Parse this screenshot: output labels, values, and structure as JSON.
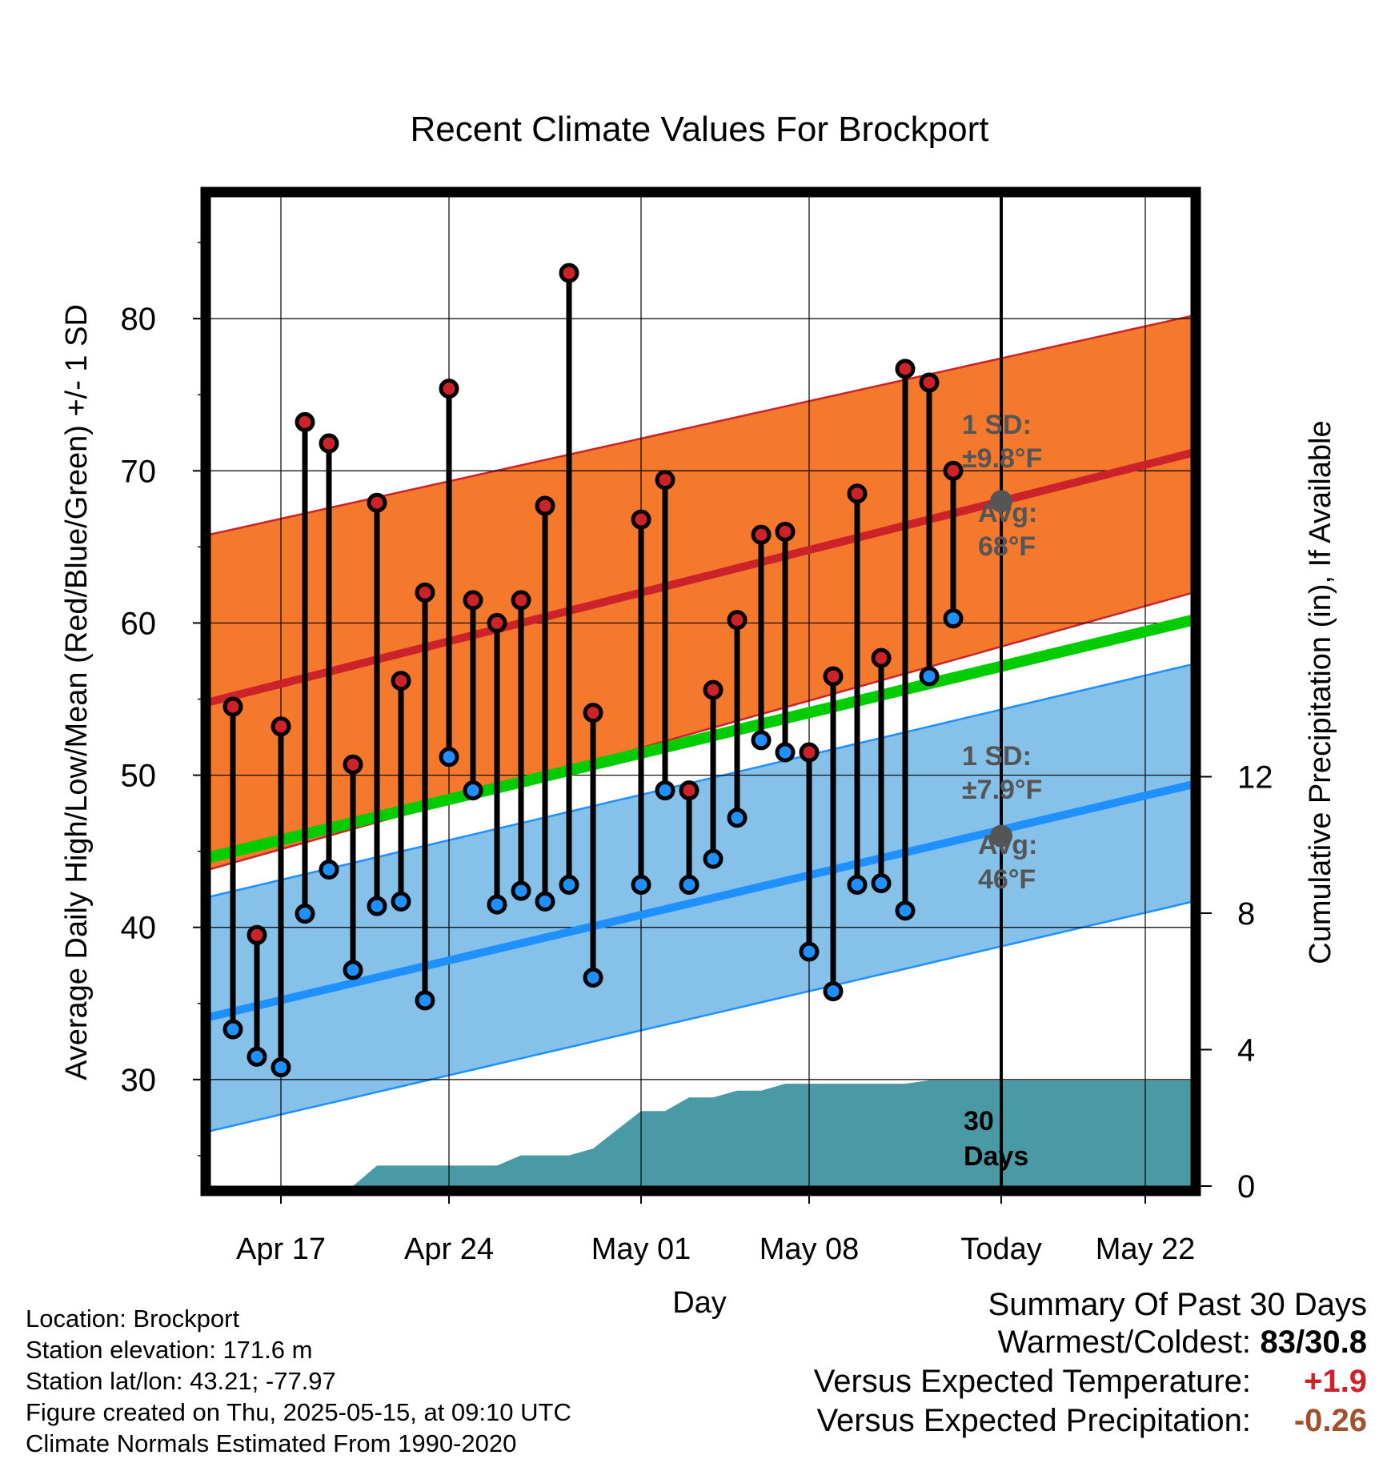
{
  "chart_data": {
    "type": "line",
    "title": "Recent Climate Values For Brockport",
    "xlabel": "Day",
    "ylabel": "Average Daily High/Low/Mean (Red/Blue/Green) +/- 1 SD",
    "y2label": "Cumulative Precipitation (in), If Available",
    "ylim": [
      23,
      88
    ],
    "y2lim": [
      0,
      29
    ],
    "x_tick_labels": [
      "Apr 17",
      "Apr 24",
      "May 01",
      "May 08",
      "Today",
      "May 22"
    ],
    "y_ticks": [
      "30",
      "40",
      "50",
      "60",
      "70",
      "80"
    ],
    "y2_ticks": [
      "0",
      "4",
      "8",
      "12"
    ],
    "dates": [
      "Apr 15",
      "Apr 16",
      "Apr 17",
      "Apr 18",
      "Apr 19",
      "Apr 20",
      "Apr 21",
      "Apr 22",
      "Apr 23",
      "Apr 24",
      "Apr 25",
      "Apr 26",
      "Apr 27",
      "Apr 28",
      "Apr 29",
      "Apr 30",
      "May 01",
      "May 02",
      "May 03",
      "May 04",
      "May 05",
      "May 06",
      "May 07",
      "May 08",
      "May 09",
      "May 10",
      "May 11",
      "May 12",
      "May 13",
      "May 14"
    ],
    "series": [
      {
        "name": "High",
        "values": [
          54.5,
          39.5,
          53.2,
          73.2,
          71.8,
          50.7,
          67.9,
          56.2,
          62.0,
          75.4,
          61.5,
          60.0,
          61.5,
          67.7,
          83.0,
          54.1,
          66.8,
          69.4,
          49.0,
          55.6,
          60.2,
          65.8,
          66.0,
          51.5,
          56.5,
          68.5,
          57.7,
          76.7,
          75.8,
          70.0
        ]
      },
      {
        "name": "Low",
        "values": [
          33.3,
          31.5,
          30.8,
          40.9,
          43.8,
          37.2,
          41.4,
          41.7,
          35.2,
          51.2,
          49.0,
          41.5,
          42.4,
          41.7,
          42.8,
          36.7,
          42.8,
          49.0,
          42.8,
          44.5,
          47.2,
          52.3,
          51.5,
          38.4,
          35.8,
          42.8,
          42.9,
          41.1,
          56.5,
          60.3
        ]
      }
    ],
    "normals": {
      "x_start": "Apr 14",
      "x_end": "May 24",
      "high_avg": [
        54.8,
        71.2
      ],
      "high_sd_band_low": [
        43.8,
        62.0
      ],
      "high_sd_band_high": [
        65.8,
        80.2
      ],
      "mean": [
        44.6,
        60.2
      ],
      "low_avg": [
        34.1,
        49.4
      ],
      "low_sd_band_low": [
        26.6,
        41.7
      ],
      "low_sd_band_high": [
        42.0,
        57.3
      ]
    },
    "precip_cumulative": {
      "x": [
        "Apr 14",
        "Apr 20",
        "Apr 21",
        "Apr 26",
        "Apr 27",
        "Apr 28",
        "Apr 29",
        "Apr 30",
        "May 01",
        "May 02",
        "May 03",
        "May 04",
        "May 05",
        "May 06",
        "May 07",
        "May 08",
        "May 11",
        "May 12",
        "May 13",
        "May 14",
        "May 24"
      ],
      "values": [
        0.0,
        0.0,
        0.6,
        0.6,
        0.9,
        0.9,
        0.9,
        1.1,
        2.2,
        2.2,
        2.6,
        2.6,
        2.8,
        2.8,
        3.0,
        3.0,
        3.0,
        3.0,
        3.1,
        3.1,
        3.1
      ]
    },
    "annotations": {
      "high_sd": "1 SD:",
      "high_sd_val": "±9.8°F",
      "high_avg_label": "Avg:",
      "high_avg_val": "68°F",
      "low_sd": "1 SD:",
      "low_sd_val": "±7.9°F",
      "low_avg_label": "Avg:",
      "low_avg_val": "46°F",
      "window_num": "30",
      "window_unit": "Days",
      "today_high_avg": 68,
      "today_low_avg": 46
    },
    "colors": {
      "high": "#cc2229",
      "low": "#1e90ff",
      "mean": "#00cc00",
      "high_band": "#f4792c",
      "low_band": "#85c1e9",
      "precip": "#4a9aa5",
      "avg_marker": "#555555"
    }
  },
  "info": {
    "location": "Location: Brockport",
    "elevation": "Station elevation: 171.6 m",
    "latlon": "Station lat/lon: 43.21; -77.97",
    "created": "Figure created on Thu, 2025-05-15, at 09:10 UTC",
    "normals": "Climate Normals Estimated From 1990-2020"
  },
  "summary": {
    "title": "Summary Of Past 30 Days",
    "warmest_coldest_label": "Warmest/Coldest:",
    "warmest_coldest_value": "83/30.8",
    "temp_label": "Versus Expected Temperature:",
    "temp_value": "+1.9",
    "temp_color": "#cc2229",
    "precip_label": "Versus Expected Precipitation:",
    "precip_value": "-0.26",
    "precip_color": "#a0522d"
  }
}
